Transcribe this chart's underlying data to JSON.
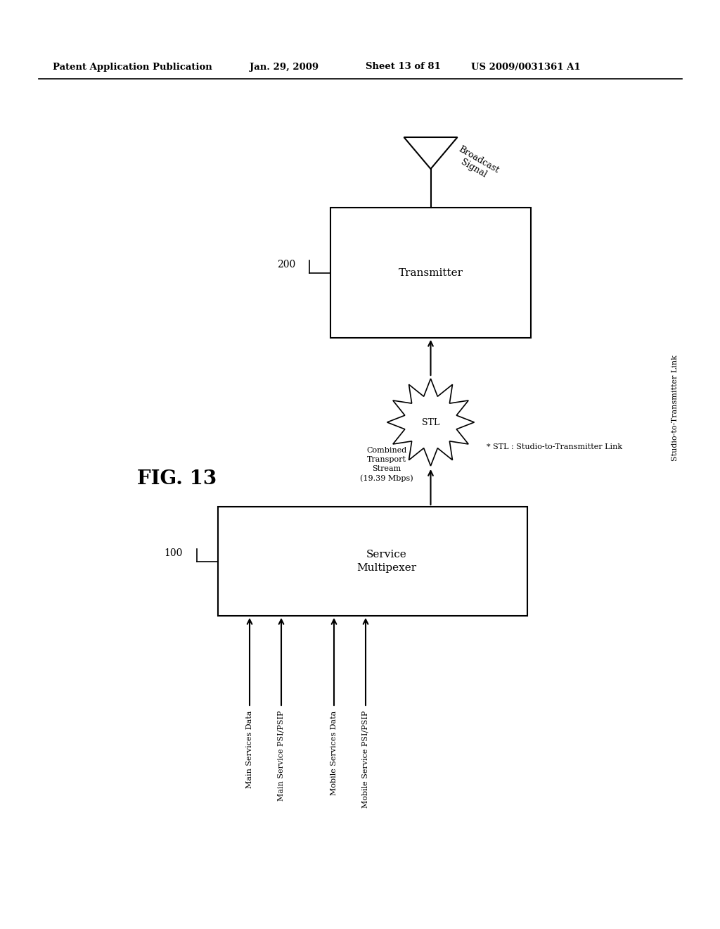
{
  "title_header": "Patent Application Publication",
  "date_header": "Jan. 29, 2009",
  "sheet_header": "Sheet 13 of 81",
  "patent_header": "US 2009/0031361 A1",
  "fig_label": "FIG. 13",
  "bg_color": "#ffffff",
  "box1_label": "Service\nMultipexer",
  "box1_ref": "100",
  "box2_label": "Transmitter",
  "box2_ref": "200",
  "stl_label": "STL",
  "stl_note": "* STL : Studio-to-Transmitter Link",
  "combined_stream_label": "Combined\nTransport\nStream\n(19.39 Mbps)",
  "broadcast_label": "Broadcast\nSignal",
  "stl_side_label": "Studio-to-Transmitter Link",
  "inputs": [
    "Main Services Data",
    "Main Service PSI/PSIP",
    "Mobile Services Data",
    "Mobile Service PSI/PSIP"
  ]
}
